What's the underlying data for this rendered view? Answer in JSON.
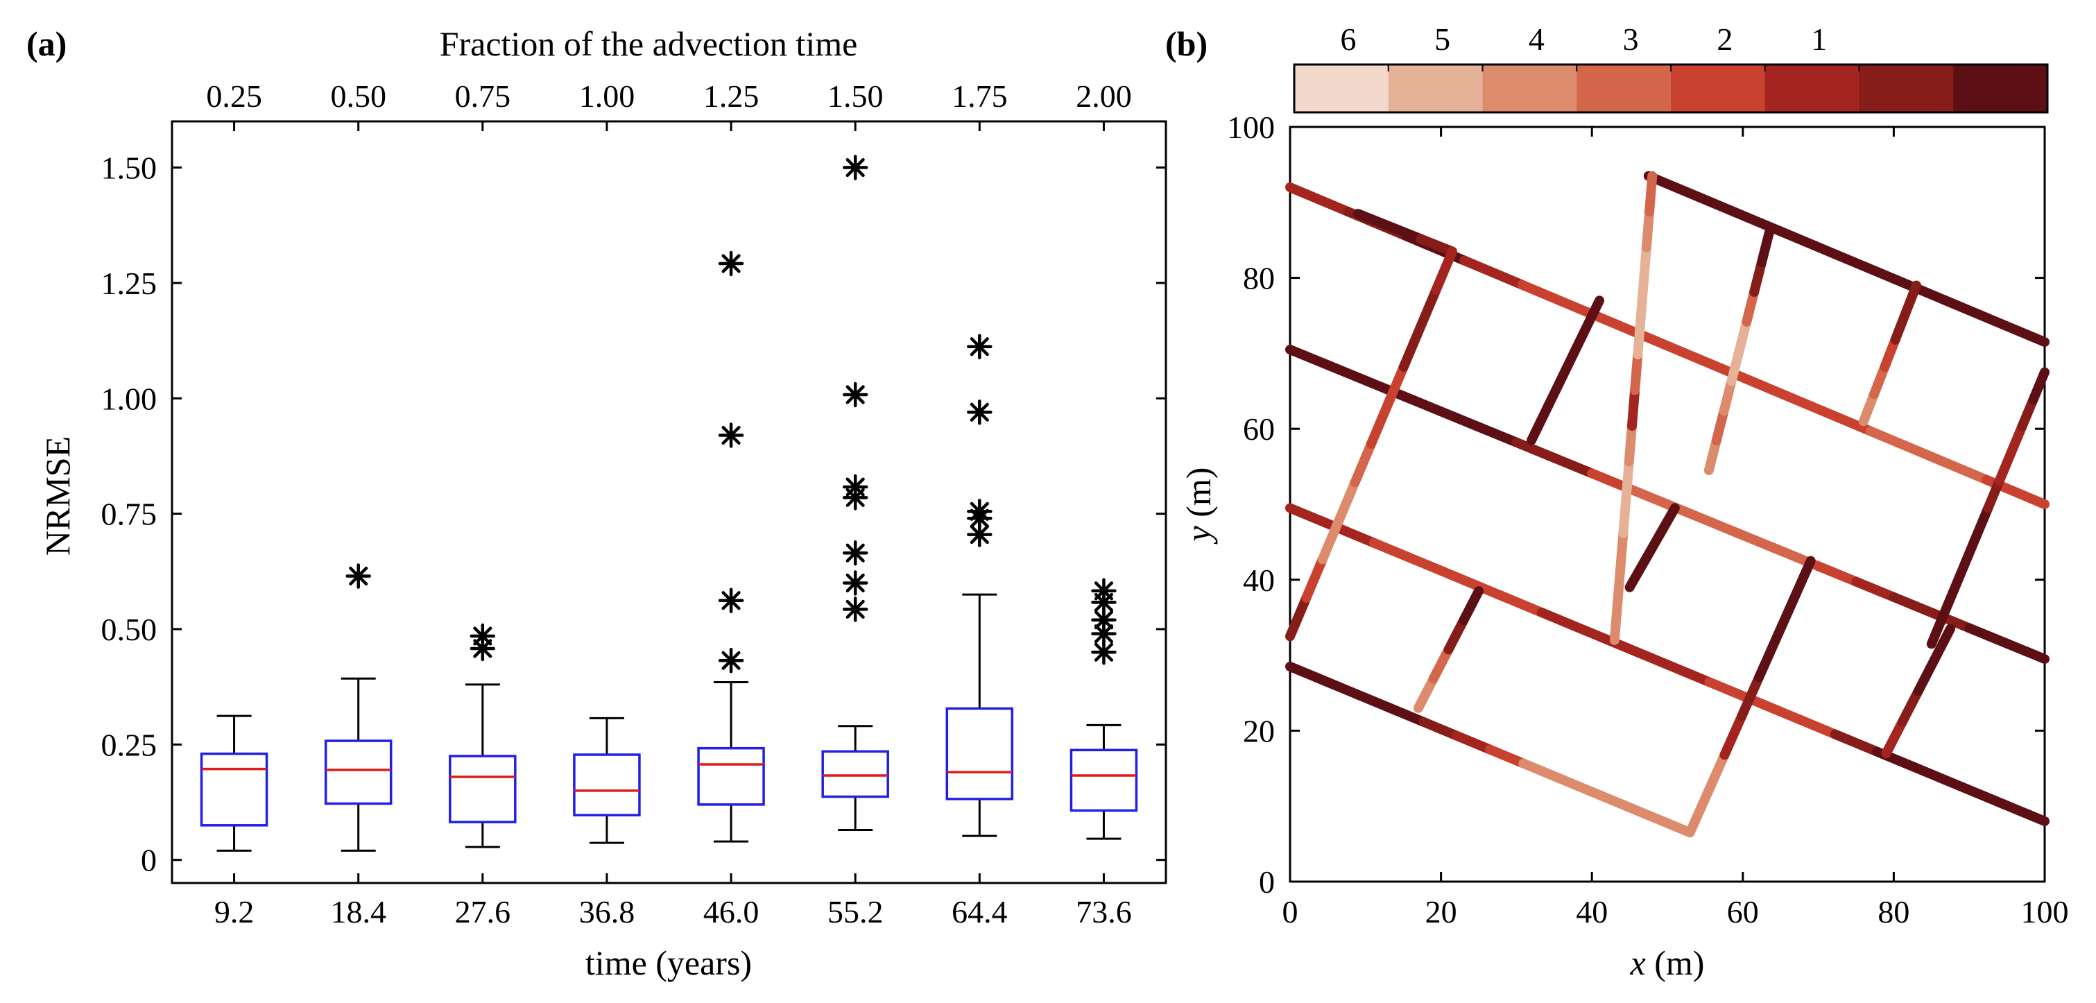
{
  "panels": {
    "a": {
      "label": "(a)"
    },
    "b": {
      "label": "(b)"
    }
  },
  "colors": {
    "box": "#1f1fe6",
    "median": "#e01a1a",
    "whisker": "#000000",
    "outlier": "#000000",
    "axis": "#000000",
    "fracture_scale": [
      "#f3d9cb",
      "#e6b297",
      "#dc8c6d",
      "#d4674b",
      "#c9422f",
      "#a4251f",
      "#861d18",
      "#5c1015"
    ]
  },
  "chart_data": [
    {
      "type": "boxplot",
      "panel": "(a)",
      "title": "",
      "xlabel": "time (years)",
      "ylabel": "NRMSE",
      "top_xlabel": "Fraction of the advection time",
      "categories": [
        "9.2",
        "18.4",
        "27.6",
        "36.8",
        "46.0",
        "55.2",
        "64.4",
        "73.6"
      ],
      "top_categories": [
        "0.25",
        "0.50",
        "0.75",
        "1.00",
        "1.25",
        "1.50",
        "1.75",
        "2.00"
      ],
      "ylim": [
        -0.05,
        1.6
      ],
      "yticks": [
        0,
        0.25,
        0.5,
        0.75,
        1.0,
        1.25,
        1.5
      ],
      "ytick_labels": [
        "0",
        "0.25",
        "0.50",
        "0.75",
        "1.00",
        "1.25",
        "1.50"
      ],
      "boxes": [
        {
          "category": "9.2",
          "whisker_low": 0.02,
          "q1": 0.075,
          "median": 0.197,
          "q3": 0.23,
          "whisker_high": 0.312,
          "outliers": []
        },
        {
          "category": "18.4",
          "whisker_low": 0.02,
          "q1": 0.122,
          "median": 0.195,
          "q3": 0.258,
          "whisker_high": 0.393,
          "outliers": [
            0.615
          ]
        },
        {
          "category": "27.6",
          "whisker_low": 0.028,
          "q1": 0.082,
          "median": 0.18,
          "q3": 0.225,
          "whisker_high": 0.38,
          "outliers": [
            0.458,
            0.485
          ]
        },
        {
          "category": "36.8",
          "whisker_low": 0.037,
          "q1": 0.097,
          "median": 0.15,
          "q3": 0.228,
          "whisker_high": 0.307,
          "outliers": []
        },
        {
          "category": "46.0",
          "whisker_low": 0.04,
          "q1": 0.12,
          "median": 0.207,
          "q3": 0.242,
          "whisker_high": 0.385,
          "outliers": [
            0.432,
            0.562,
            0.92,
            1.292
          ]
        },
        {
          "category": "55.2",
          "whisker_low": 0.065,
          "q1": 0.137,
          "median": 0.183,
          "q3": 0.235,
          "whisker_high": 0.29,
          "outliers": [
            0.543,
            0.6,
            0.665,
            0.785,
            0.808,
            1.008,
            1.5
          ]
        },
        {
          "category": "64.4",
          "whisker_low": 0.052,
          "q1": 0.132,
          "median": 0.19,
          "q3": 0.328,
          "whisker_high": 0.575,
          "outliers": [
            0.705,
            0.74,
            0.755,
            0.97,
            1.112
          ]
        },
        {
          "category": "73.6",
          "whisker_low": 0.046,
          "q1": 0.107,
          "median": 0.183,
          "q3": 0.238,
          "whisker_high": 0.292,
          "outliers": [
            0.45,
            0.49,
            0.52,
            0.558,
            0.583
          ]
        }
      ]
    },
    {
      "type": "network",
      "panel": "(b)",
      "title": "",
      "xlabel_var": "x",
      "xlabel_unit": " (m)",
      "ylabel_var": "y",
      "ylabel_unit": " (m)",
      "xlim": [
        0,
        100
      ],
      "ylim": [
        0,
        100
      ],
      "xticks": [
        0,
        20,
        40,
        60,
        80,
        100
      ],
      "yticks": [
        0,
        20,
        40,
        60,
        80,
        100
      ],
      "colorbar": {
        "tick_labels": [
          "6",
          "5",
          "4",
          "3",
          "2",
          "1"
        ],
        "n_bins": 8,
        "orientation": "horizontal",
        "position": "top"
      },
      "segments": [
        {
          "x1": 0,
          "y1": 92,
          "x2": 100,
          "y2": 50,
          "levels": [
            5,
            6,
            7,
            5,
            4,
            4,
            4,
            4,
            4,
            4,
            3,
            3,
            4
          ]
        },
        {
          "x1": 0,
          "y1": 70.5,
          "x2": 100,
          "y2": 29.5,
          "levels": [
            7,
            7,
            7,
            7,
            7,
            7,
            6,
            6,
            4,
            3,
            3,
            3,
            3,
            3,
            4,
            5,
            6,
            6,
            7,
            7
          ]
        },
        {
          "x1": 0,
          "y1": 49.5,
          "x2": 100,
          "y2": 8,
          "levels": [
            5,
            5,
            4,
            4,
            4,
            4,
            5,
            5,
            5,
            5,
            4,
            4,
            4,
            6,
            7,
            7,
            7,
            7
          ]
        },
        {
          "x1": 0,
          "y1": 28.5,
          "x2": 53,
          "y2": 6.5,
          "levels": [
            7,
            7,
            7,
            7,
            6,
            5,
            4,
            2,
            2,
            2,
            2,
            2
          ]
        },
        {
          "x1": 47.5,
          "y1": 93.5,
          "x2": 100,
          "y2": 71.5,
          "levels": [
            7,
            7,
            7,
            7,
            7,
            7,
            7,
            7
          ]
        },
        {
          "x1": 9,
          "y1": 88.5,
          "x2": 21.5,
          "y2": 83.5,
          "levels": [
            7,
            7,
            6
          ]
        },
        {
          "x1": 0,
          "y1": 32.5,
          "x2": 21.5,
          "y2": 83.5,
          "levels": [
            6,
            4,
            2,
            2,
            3,
            4,
            4,
            6,
            6,
            5
          ]
        },
        {
          "x1": 17,
          "y1": 23,
          "x2": 25,
          "y2": 38.5,
          "levels": [
            2,
            3,
            6,
            7
          ]
        },
        {
          "x1": 32,
          "y1": 58.5,
          "x2": 41,
          "y2": 77,
          "levels": [
            7,
            7,
            7,
            7
          ]
        },
        {
          "x1": 43,
          "y1": 32,
          "x2": 48,
          "y2": 93.5,
          "levels": [
            2,
            2,
            2,
            1,
            1,
            2,
            5,
            3,
            1,
            1,
            1,
            2,
            3
          ]
        },
        {
          "x1": 45,
          "y1": 39,
          "x2": 51,
          "y2": 49.5,
          "levels": [
            7,
            7,
            7
          ]
        },
        {
          "x1": 53,
          "y1": 6.5,
          "x2": 69,
          "y2": 42.5,
          "levels": [
            2,
            2,
            5,
            6,
            7,
            7,
            7
          ]
        },
        {
          "x1": 55.5,
          "y1": 54.5,
          "x2": 63.5,
          "y2": 86,
          "levels": [
            2,
            3,
            2,
            1,
            1,
            3,
            6,
            7
          ]
        },
        {
          "x1": 79,
          "y1": 17,
          "x2": 87.5,
          "y2": 33.5,
          "levels": [
            5,
            6,
            7,
            7
          ]
        },
        {
          "x1": 76,
          "y1": 61,
          "x2": 83,
          "y2": 79,
          "levels": [
            2,
            3,
            4,
            6,
            6
          ]
        },
        {
          "x1": 85,
          "y1": 31.5,
          "x2": 100,
          "y2": 67.5,
          "levels": [
            7,
            7,
            7,
            7,
            7,
            6,
            5,
            5,
            6,
            7
          ]
        }
      ]
    }
  ]
}
